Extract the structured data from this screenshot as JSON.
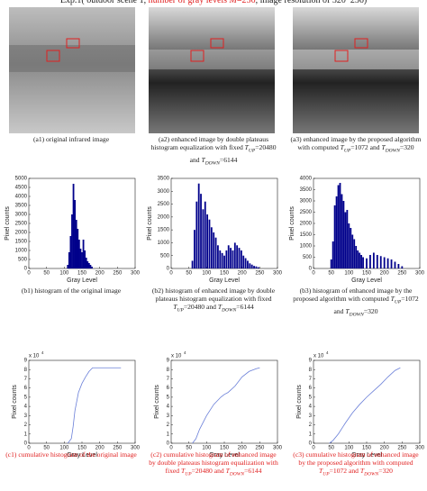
{
  "title": [
    {
      "text": "Exp.1( outdoor scene 1, "
    },
    {
      "text": "number of gray levels ",
      "color": "#e02020"
    },
    {
      "text": "M",
      "color": "#e02020",
      "italic": true
    },
    {
      "text": "=256",
      "color": "#e02020"
    },
    {
      "text": ", image resolution of 320*256)"
    }
  ],
  "captions": [
    {
      "parts": [
        {
          "text": "(a1) original infrared image"
        }
      ]
    },
    {
      "parts": [
        {
          "text": "(a2) enhanced image by double plateaus histogram equalization with fixed "
        },
        {
          "text": "T",
          "italic": true
        },
        {
          "text": "UP",
          "sub": true
        },
        {
          "text": "=20480 and "
        },
        {
          "text": "T",
          "italic": true
        },
        {
          "text": "DOWN",
          "sub": true
        },
        {
          "text": "=6144"
        }
      ]
    },
    {
      "parts": [
        {
          "text": "(a3) enhanced image by the proposed algorithm with computed "
        },
        {
          "text": "T",
          "italic": true
        },
        {
          "text": "UP",
          "sub": true
        },
        {
          "text": "=1072 and "
        },
        {
          "text": "T",
          "italic": true
        },
        {
          "text": "DOWN",
          "sub": true
        },
        {
          "text": "=320"
        }
      ]
    },
    {
      "parts": [
        {
          "text": "(b1) histogram of the original image"
        }
      ]
    },
    {
      "parts": [
        {
          "text": "(b2) histogram of enhanced image by double plateaus histogram equalization with fixed "
        },
        {
          "text": "T",
          "italic": true
        },
        {
          "text": "UP",
          "sub": true
        },
        {
          "text": "=20480 and "
        },
        {
          "text": "T",
          "italic": true
        },
        {
          "text": "DOWN",
          "sub": true
        },
        {
          "text": "=6144"
        }
      ]
    },
    {
      "parts": [
        {
          "text": "(b3) histogram of enhanced image by the proposed algorithm with computed "
        },
        {
          "text": "T",
          "italic": true
        },
        {
          "text": "UP",
          "sub": true
        },
        {
          "text": "=1072 and "
        },
        {
          "text": "T",
          "italic": true
        },
        {
          "text": "DOWN",
          "sub": true
        },
        {
          "text": "=320"
        }
      ]
    },
    {
      "color": "#e02020",
      "parts": [
        {
          "text": "(c1) cumulative histogram of the original image"
        }
      ]
    },
    {
      "color": "#e02020",
      "parts": [
        {
          "text": "(c2) cumulative histogram of enhanced image by double plateaus histogram equalization with fixed "
        },
        {
          "text": "T",
          "italic": true
        },
        {
          "text": "UP",
          "sub": true
        },
        {
          "text": "=20480 and "
        },
        {
          "text": "T",
          "italic": true
        },
        {
          "text": "DOWN",
          "sub": true
        },
        {
          "text": "=6144"
        }
      ]
    },
    {
      "color": "#e02020",
      "parts": [
        {
          "text": "(c3) cumulative histogram of enhanced image by the proposed algorithm with computed "
        },
        {
          "text": "T",
          "italic": true
        },
        {
          "text": "UP",
          "sub": true
        },
        {
          "text": "=1072 and "
        },
        {
          "text": "T",
          "italic": true
        },
        {
          "text": "DOWN",
          "sub": true
        },
        {
          "text": "=320"
        }
      ]
    }
  ],
  "chart_data": [
    {
      "type": "bar",
      "color": "#00008b",
      "xlabel": "Gray Level",
      "ylabel": "Pixel counts",
      "x": [
        110,
        114,
        118,
        122,
        126,
        130,
        134,
        138,
        142,
        146,
        150,
        154,
        158,
        162,
        166,
        170,
        174,
        178
      ],
      "values": [
        200,
        900,
        1800,
        3000,
        4700,
        3800,
        2700,
        2200,
        1600,
        1100,
        900,
        1600,
        1000,
        600,
        400,
        300,
        200,
        100
      ],
      "xlim": [
        0,
        300
      ],
      "xticks": [
        0,
        50,
        100,
        150,
        200,
        250,
        300
      ],
      "ylim": [
        0,
        5000
      ],
      "yticks": [
        0,
        500,
        1000,
        1500,
        2000,
        2500,
        3000,
        3500,
        4000,
        4500,
        5000
      ]
    },
    {
      "type": "bar",
      "color": "#00008b",
      "xlabel": "Gray Level",
      "ylabel": "Pixel counts",
      "x": [
        60,
        66,
        72,
        78,
        84,
        90,
        96,
        102,
        108,
        114,
        120,
        126,
        132,
        138,
        144,
        150,
        156,
        162,
        168,
        174,
        180,
        186,
        192,
        198,
        204,
        210,
        216,
        222,
        228,
        234,
        240,
        246
      ],
      "values": [
        300,
        1500,
        2600,
        3300,
        2900,
        2300,
        2600,
        2100,
        1900,
        1600,
        1400,
        1200,
        900,
        700,
        600,
        500,
        700,
        900,
        800,
        700,
        1000,
        900,
        800,
        700,
        500,
        400,
        300,
        200,
        150,
        100,
        80,
        50
      ],
      "xlim": [
        0,
        300
      ],
      "xticks": [
        0,
        50,
        100,
        150,
        200,
        250,
        300
      ],
      "ylim": [
        0,
        3500
      ],
      "yticks": [
        0,
        500,
        1000,
        1500,
        2000,
        2500,
        3000,
        3500
      ]
    },
    {
      "type": "bar",
      "color": "#00008b",
      "xlabel": "Gray Level",
      "ylabel": "Pixel counts",
      "x": [
        50,
        55,
        60,
        65,
        70,
        75,
        80,
        85,
        90,
        95,
        100,
        105,
        110,
        115,
        120,
        125,
        130,
        135,
        140,
        150,
        160,
        170,
        180,
        190,
        200,
        210,
        220,
        230,
        240,
        250
      ],
      "values": [
        400,
        1200,
        2800,
        3200,
        3700,
        3800,
        3300,
        3000,
        2500,
        2600,
        2000,
        1800,
        1500,
        1300,
        1000,
        800,
        700,
        600,
        500,
        450,
        600,
        700,
        600,
        550,
        500,
        450,
        400,
        300,
        200,
        100
      ],
      "xlim": [
        0,
        300
      ],
      "xticks": [
        0,
        50,
        100,
        150,
        200,
        250,
        300
      ],
      "ylim": [
        0,
        4000
      ],
      "yticks": [
        0,
        500,
        1000,
        1500,
        2000,
        2500,
        3000,
        3500,
        4000
      ]
    },
    {
      "type": "line",
      "color": "#6a7fd8",
      "xlabel": "Gray Level",
      "ylabel": "Pixel counts",
      "y_scale": {
        "base": "x 10",
        "exp": "4"
      },
      "x": [
        110,
        120,
        125,
        130,
        140,
        150,
        160,
        170,
        180,
        260
      ],
      "values": [
        0,
        5000,
        18000,
        35000,
        55000,
        65000,
        72000,
        78000,
        81920,
        81920
      ],
      "xlim": [
        0,
        300
      ],
      "xticks": [
        0,
        50,
        100,
        150,
        200,
        250,
        300
      ],
      "ylim": [
        0,
        90000
      ],
      "yticks": [
        {
          "value": 0,
          "label": "0"
        },
        {
          "value": 10000,
          "label": "1"
        },
        {
          "value": 20000,
          "label": "2"
        },
        {
          "value": 30000,
          "label": "3"
        },
        {
          "value": 40000,
          "label": "4"
        },
        {
          "value": 50000,
          "label": "5"
        },
        {
          "value": 60000,
          "label": "6"
        },
        {
          "value": 70000,
          "label": "7"
        },
        {
          "value": 80000,
          "label": "8"
        },
        {
          "value": 90000,
          "label": "9"
        }
      ]
    },
    {
      "type": "line",
      "color": "#6a7fd8",
      "xlabel": "Gray Level",
      "ylabel": "Pixel counts",
      "y_scale": {
        "base": "x 10",
        "exp": "4"
      },
      "x": [
        60,
        70,
        80,
        100,
        120,
        140,
        150,
        160,
        180,
        200,
        220,
        240,
        250
      ],
      "values": [
        0,
        5000,
        15000,
        30000,
        42000,
        50000,
        53000,
        55000,
        62000,
        72000,
        78000,
        81000,
        81920
      ],
      "xlim": [
        0,
        300
      ],
      "xticks": [
        0,
        50,
        100,
        150,
        200,
        250,
        300
      ],
      "ylim": [
        0,
        90000
      ],
      "yticks": [
        {
          "value": 0,
          "label": "0"
        },
        {
          "value": 10000,
          "label": "1"
        },
        {
          "value": 20000,
          "label": "2"
        },
        {
          "value": 30000,
          "label": "3"
        },
        {
          "value": 40000,
          "label": "4"
        },
        {
          "value": 50000,
          "label": "5"
        },
        {
          "value": 60000,
          "label": "6"
        },
        {
          "value": 70000,
          "label": "7"
        },
        {
          "value": 80000,
          "label": "8"
        },
        {
          "value": 90000,
          "label": "9"
        }
      ]
    },
    {
      "type": "line",
      "color": "#6a7fd8",
      "xlabel": "Gray Level",
      "ylabel": "Pixel counts",
      "y_scale": {
        "base": "x 10",
        "exp": "4"
      },
      "x": [
        45,
        55,
        70,
        90,
        110,
        130,
        150,
        170,
        190,
        210,
        230,
        245
      ],
      "values": [
        0,
        3000,
        10000,
        22000,
        33000,
        42000,
        50000,
        57000,
        64000,
        72000,
        79000,
        81920
      ],
      "xlim": [
        0,
        300
      ],
      "xticks": [
        0,
        50,
        100,
        150,
        200,
        250,
        300
      ],
      "ylim": [
        0,
        90000
      ],
      "yticks": [
        {
          "value": 0,
          "label": "0"
        },
        {
          "value": 10000,
          "label": "1"
        },
        {
          "value": 20000,
          "label": "2"
        },
        {
          "value": 30000,
          "label": "3"
        },
        {
          "value": 40000,
          "label": "4"
        },
        {
          "value": 50000,
          "label": "5"
        },
        {
          "value": 60000,
          "label": "6"
        },
        {
          "value": 70000,
          "label": "7"
        },
        {
          "value": 80000,
          "label": "8"
        },
        {
          "value": 90000,
          "label": "9"
        }
      ]
    }
  ]
}
